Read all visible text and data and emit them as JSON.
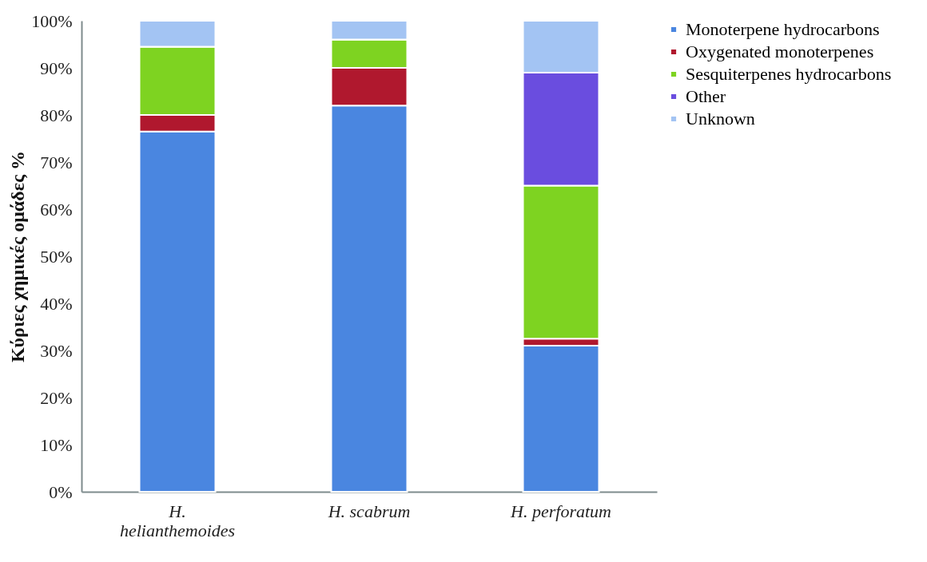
{
  "chart_data": {
    "type": "bar",
    "stacked": true,
    "ylabel": "Κύριες χημικές ομάδες %",
    "categories": [
      "H. helianthemoides",
      "H. scabrum",
      "H. perforatum"
    ],
    "series": [
      {
        "name": "Monoterpene hydrocarbons",
        "color": "#4a86e0",
        "values": [
          76.5,
          82,
          31
        ]
      },
      {
        "name": "Oxygenated monoterpenes",
        "color": "#b0182e",
        "values": [
          3.5,
          8,
          1.5
        ]
      },
      {
        "name": "Sesquiterpenes hydrocarbons",
        "color": "#7ed321",
        "values": [
          14.5,
          6,
          32.5
        ]
      },
      {
        "name": "Other",
        "color": "#6a4ddf",
        "values": [
          0,
          0,
          24
        ]
      },
      {
        "name": "Unknown",
        "color": "#a3c4f3",
        "values": [
          5.5,
          4,
          11
        ]
      }
    ],
    "ylim": [
      0,
      100
    ],
    "yticks": [
      {
        "value": 0,
        "label": "0%"
      },
      {
        "value": 10,
        "label": "10%"
      },
      {
        "value": 20,
        "label": "20%"
      },
      {
        "value": 30,
        "label": "30%"
      },
      {
        "value": 40,
        "label": "40%"
      },
      {
        "value": 50,
        "label": "50%"
      },
      {
        "value": 60,
        "label": "60%"
      },
      {
        "value": 70,
        "label": "70%"
      },
      {
        "value": 80,
        "label": "80%"
      },
      {
        "value": 90,
        "label": "90%"
      },
      {
        "value": 100,
        "label": "100%"
      }
    ],
    "grid": false,
    "legend": "top right"
  }
}
